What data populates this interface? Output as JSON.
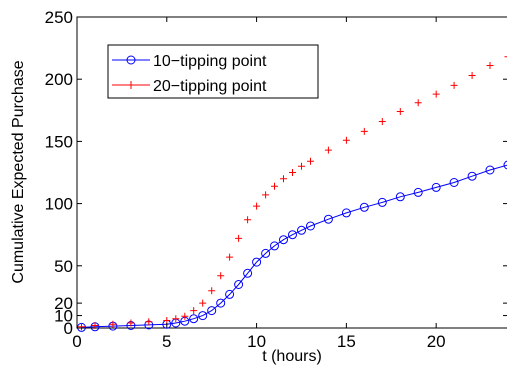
{
  "chart_data": {
    "type": "line",
    "xlabel": "t (hours)",
    "ylabel": "Cumulative Expected Purchase",
    "xlim": [
      0,
      24
    ],
    "ylim": [
      0,
      250
    ],
    "x_ticks": [
      0,
      5,
      10,
      15,
      20
    ],
    "y_ticks": [
      0,
      10,
      20,
      50,
      100,
      150,
      200,
      250
    ],
    "grid": false,
    "legend_position": "top-left",
    "series": [
      {
        "name": "10−tipping point",
        "color": "#0000ff",
        "marker": "circle",
        "x": [
          0.25,
          1,
          2,
          3,
          4,
          5,
          5.5,
          6,
          6.5,
          7,
          7.5,
          8,
          8.5,
          9,
          9.5,
          10,
          10.5,
          11,
          11.5,
          12,
          12.5,
          13,
          14,
          15,
          16,
          17,
          18,
          19,
          20,
          21,
          22,
          23,
          24
        ],
        "values": [
          0.5,
          1,
          1.5,
          2,
          2.5,
          3,
          4,
          5.5,
          7.5,
          10,
          14,
          20,
          27,
          35,
          44,
          53,
          60,
          66,
          71,
          75,
          78.5,
          82,
          87.5,
          92.5,
          97,
          101,
          105.5,
          109,
          113,
          117,
          122,
          127,
          131
        ]
      },
      {
        "name": "20−tipping point",
        "color": "#ff0000",
        "marker": "plus",
        "x": [
          0.25,
          1,
          2,
          3,
          4,
          5,
          5.5,
          6,
          6.5,
          7,
          7.5,
          8,
          8.5,
          9,
          9.5,
          10,
          10.5,
          11,
          11.5,
          12,
          12.5,
          13,
          14,
          15,
          16,
          17,
          18,
          19,
          20,
          21,
          22,
          23,
          24
        ],
        "values": [
          1,
          2,
          3,
          4,
          5,
          6,
          7.5,
          9.5,
          14,
          20,
          30,
          42,
          57,
          72,
          87,
          98,
          107,
          114,
          120,
          125,
          130,
          134,
          143,
          151,
          158,
          166,
          174,
          181,
          188,
          195,
          203,
          211,
          218
        ]
      }
    ]
  }
}
